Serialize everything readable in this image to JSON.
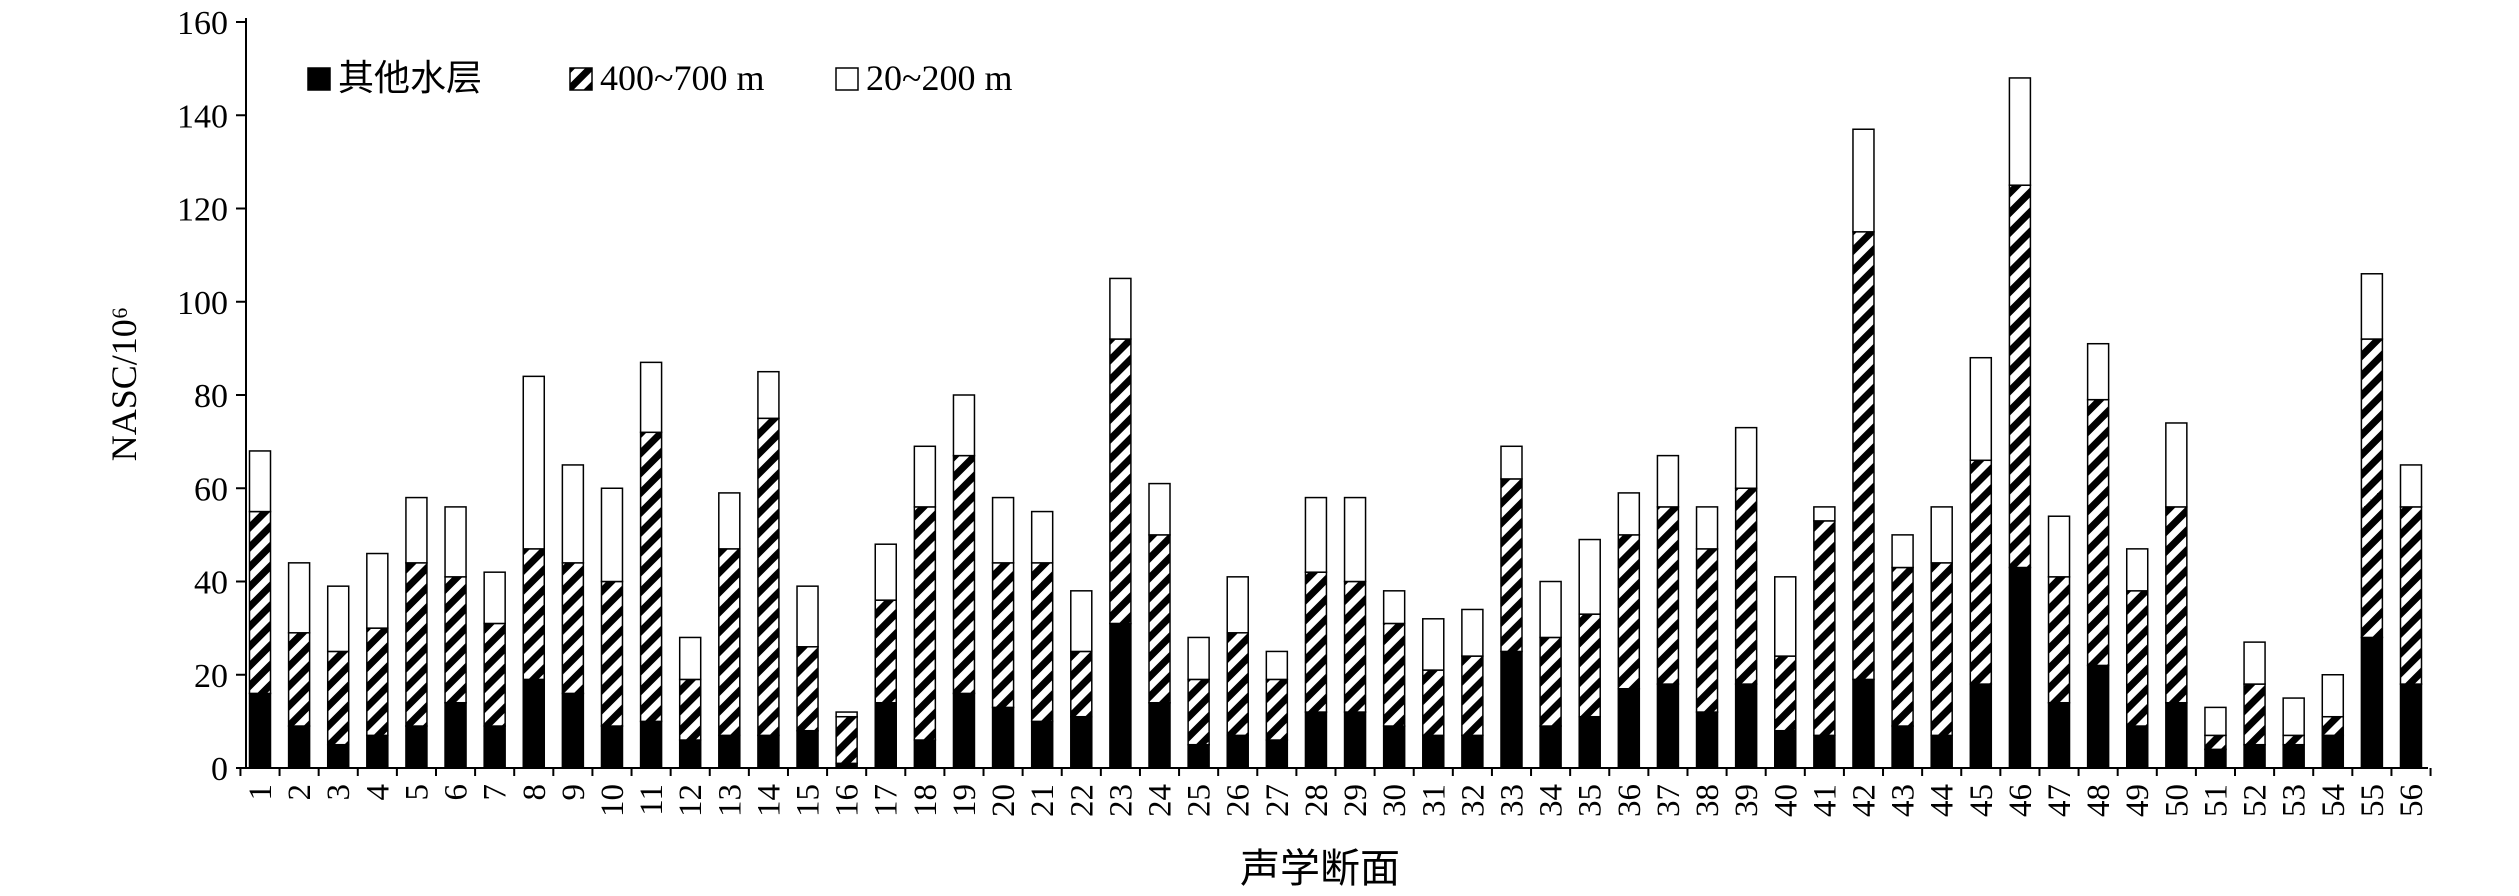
{
  "chart_data": {
    "type": "bar",
    "stacked": true,
    "title": "",
    "xlabel": "声学断面",
    "ylabel": "NASC/10⁶",
    "ylim": [
      0,
      160
    ],
    "yticks": [
      0,
      20,
      40,
      60,
      80,
      100,
      120,
      140,
      160
    ],
    "grid": false,
    "legend_position": "top-left",
    "categories": [
      "1",
      "2",
      "3",
      "4",
      "5",
      "6",
      "7",
      "8",
      "9",
      "10",
      "11",
      "12",
      "13",
      "14",
      "15",
      "16",
      "17",
      "18",
      "19",
      "20",
      "21",
      "22",
      "23",
      "24",
      "25",
      "26",
      "27",
      "28",
      "29",
      "30",
      "31",
      "32",
      "33",
      "34",
      "35",
      "36",
      "37",
      "38",
      "39",
      "40",
      "41",
      "42",
      "43",
      "44",
      "45",
      "46",
      "47",
      "48",
      "49",
      "50",
      "51",
      "52",
      "53",
      "54",
      "55",
      "56"
    ],
    "series": [
      {
        "name": "其他水层",
        "pattern": "solid-black",
        "values": [
          16,
          9,
          5,
          7,
          9,
          14,
          9,
          19,
          16,
          9,
          10,
          6,
          7,
          7,
          8,
          1,
          14,
          6,
          16,
          13,
          10,
          11,
          31,
          14,
          5,
          7,
          6,
          12,
          12,
          9,
          7,
          7,
          25,
          9,
          11,
          17,
          18,
          12,
          18,
          8,
          7,
          19,
          9,
          7,
          18,
          43,
          14,
          22,
          9,
          14,
          4,
          5,
          5,
          7,
          28,
          18
        ]
      },
      {
        "name": "400~700 m",
        "pattern": "diagonal-hatch",
        "values": [
          39,
          20,
          20,
          23,
          35,
          27,
          22,
          28,
          28,
          31,
          62,
          13,
          40,
          68,
          18,
          10,
          22,
          50,
          51,
          31,
          34,
          14,
          61,
          36,
          14,
          22,
          13,
          30,
          28,
          22,
          14,
          17,
          37,
          19,
          22,
          33,
          38,
          35,
          42,
          16,
          46,
          96,
          34,
          37,
          48,
          82,
          27,
          57,
          29,
          42,
          3,
          13,
          2,
          4,
          64,
          38
        ]
      },
      {
        "name": "20~200 m",
        "pattern": "open-white",
        "values": [
          13,
          15,
          14,
          16,
          14,
          15,
          11,
          37,
          21,
          20,
          15,
          9,
          12,
          10,
          13,
          1,
          12,
          13,
          13,
          14,
          11,
          13,
          13,
          11,
          9,
          12,
          6,
          16,
          18,
          7,
          11,
          10,
          7,
          12,
          16,
          9,
          11,
          9,
          13,
          17,
          3,
          22,
          7,
          12,
          22,
          23,
          13,
          12,
          9,
          18,
          6,
          9,
          8,
          9,
          14,
          9
        ]
      }
    ]
  }
}
